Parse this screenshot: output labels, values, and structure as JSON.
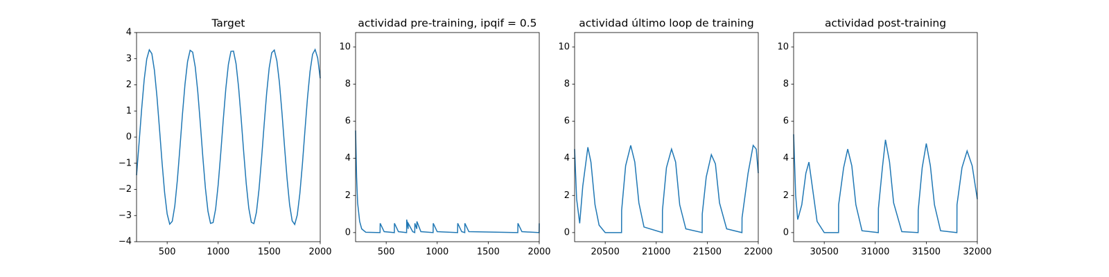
{
  "chart_data": [
    {
      "type": "line",
      "title": "Target",
      "color": "#1f77b4",
      "x": [
        200,
        225,
        250,
        275,
        300,
        325,
        350,
        375,
        400,
        425,
        450,
        475,
        500,
        525,
        550,
        575,
        600,
        625,
        650,
        675,
        700,
        725,
        750,
        775,
        800,
        825,
        850,
        875,
        900,
        925,
        950,
        975,
        1000,
        1025,
        1050,
        1075,
        1100,
        1125,
        1150,
        1175,
        1200,
        1225,
        1250,
        1275,
        1300,
        1325,
        1350,
        1375,
        1400,
        1425,
        1450,
        1475,
        1500,
        1525,
        1550,
        1575,
        1600,
        1625,
        1650,
        1675,
        1700,
        1725,
        1750,
        1775,
        1800,
        1825,
        1850,
        1875,
        1900,
        1925,
        1950,
        1975,
        2000
      ],
      "values": [
        -1.46,
        -0.21,
        1.07,
        2.2,
        2.99,
        3.34,
        3.19,
        2.56,
        1.55,
        0.31,
        -0.97,
        -2.12,
        -2.94,
        -3.33,
        -3.22,
        -2.63,
        -1.64,
        -0.41,
        0.88,
        2.03,
        2.89,
        3.32,
        3.25,
        2.69,
        1.74,
        0.52,
        -0.78,
        -1.96,
        -2.84,
        -3.3,
        -3.27,
        -2.75,
        -1.82,
        -0.62,
        0.67,
        1.86,
        2.78,
        3.28,
        3.29,
        2.81,
        1.91,
        0.72,
        -0.57,
        -1.78,
        -2.72,
        -3.26,
        -3.31,
        -2.87,
        -2.0,
        -0.83,
        0.46,
        1.68,
        2.65,
        3.23,
        3.33,
        2.92,
        2.09,
        0.94,
        -0.35,
        -1.58,
        -2.59,
        -3.2,
        -3.34,
        -2.98,
        -2.17,
        -1.05,
        0.24,
        1.49,
        2.51,
        3.17,
        3.35,
        3.03,
        2.25
      ],
      "xlim": [
        200,
        2000
      ],
      "xticks": [
        500,
        1000,
        1500,
        2000
      ],
      "ylim": [
        -4,
        4
      ],
      "yticks": [
        {
          "value": -4,
          "label": "−4"
        },
        {
          "value": -3,
          "label": "−3"
        },
        {
          "value": -2,
          "label": "−2"
        },
        {
          "value": -1,
          "label": "−1"
        },
        0,
        1,
        2,
        3,
        4
      ]
    },
    {
      "type": "line",
      "title": "actividad pre-training, ipqif = 0.5",
      "color": "#1f77b4",
      "x": [
        200,
        210,
        220,
        240,
        260,
        300,
        440,
        441,
        480,
        580,
        581,
        620,
        700,
        701,
        715,
        716,
        760,
        780,
        781,
        800,
        801,
        840,
        960,
        961,
        1000,
        1200,
        1201,
        1240,
        1270,
        1271,
        1310,
        1790,
        1791,
        1830,
        1999,
        2000
      ],
      "values": [
        5.5,
        3.0,
        1.6,
        0.6,
        0.2,
        0.02,
        0,
        0.5,
        0.05,
        0,
        0.5,
        0.05,
        0,
        0.7,
        0.2,
        0.5,
        0.05,
        0,
        0.5,
        0.2,
        0.6,
        0.05,
        0,
        0.5,
        0.05,
        0,
        0.5,
        0.05,
        0,
        0.5,
        0.05,
        0,
        0.5,
        0.05,
        0,
        0.5
      ],
      "xlim": [
        200,
        2000
      ],
      "xticks": [
        500,
        1000,
        1500,
        2000
      ],
      "ylim": [
        -0.49,
        10.78
      ],
      "yticks": [
        0,
        2,
        4,
        6,
        8,
        10
      ]
    },
    {
      "type": "line",
      "title": "actividad último loop de training",
      "color": "#1f77b4",
      "x": [
        20200,
        20220,
        20250,
        20280,
        20330,
        20360,
        20400,
        20440,
        20500,
        20660,
        20661,
        20700,
        20750,
        20790,
        20830,
        20880,
        21060,
        21061,
        21100,
        21150,
        21190,
        21230,
        21290,
        21450,
        21451,
        21490,
        21540,
        21580,
        21620,
        21690,
        21840,
        21841,
        21900,
        21950,
        21980,
        22000
      ],
      "values": [
        4.5,
        1.8,
        0.5,
        2.5,
        4.6,
        3.8,
        1.5,
        0.4,
        0,
        0,
        1.2,
        3.6,
        4.7,
        3.8,
        1.6,
        0.3,
        0,
        1.2,
        3.5,
        4.5,
        3.8,
        1.5,
        0.2,
        0,
        1.0,
        3.0,
        4.2,
        3.7,
        1.6,
        0.2,
        0,
        0.8,
        3.2,
        4.7,
        4.5,
        3.2
      ],
      "xlim": [
        20200,
        22000
      ],
      "xticks": [
        20500,
        21000,
        21500,
        22000
      ],
      "ylim": [
        -0.49,
        10.78
      ],
      "yticks": [
        0,
        2,
        4,
        6,
        8,
        10
      ]
    },
    {
      "type": "line",
      "title": "actividad post-training",
      "color": "#1f77b4",
      "x": [
        30200,
        30220,
        30240,
        30280,
        30320,
        30350,
        30390,
        30430,
        30500,
        30640,
        30641,
        30690,
        30730,
        30770,
        30810,
        30870,
        31030,
        31031,
        31070,
        31100,
        31140,
        31180,
        31260,
        31420,
        31421,
        31460,
        31500,
        31540,
        31580,
        31640,
        31800,
        31801,
        31850,
        31900,
        31950,
        32000
      ],
      "values": [
        5.3,
        2.0,
        0.7,
        1.5,
        3.2,
        3.8,
        2.2,
        0.6,
        0,
        0,
        1.5,
        3.5,
        4.5,
        3.6,
        1.5,
        0.1,
        0,
        1.3,
        3.5,
        5.0,
        3.8,
        1.6,
        0.05,
        0,
        1.2,
        3.5,
        4.8,
        3.6,
        1.5,
        0.1,
        0,
        1.5,
        3.5,
        4.4,
        3.6,
        1.8
      ],
      "xlim": [
        30200,
        32000
      ],
      "xticks": [
        30500,
        31000,
        31500,
        32000
      ],
      "ylim": [
        -0.49,
        10.78
      ],
      "yticks": [
        0,
        2,
        4,
        6,
        8,
        10
      ]
    }
  ]
}
